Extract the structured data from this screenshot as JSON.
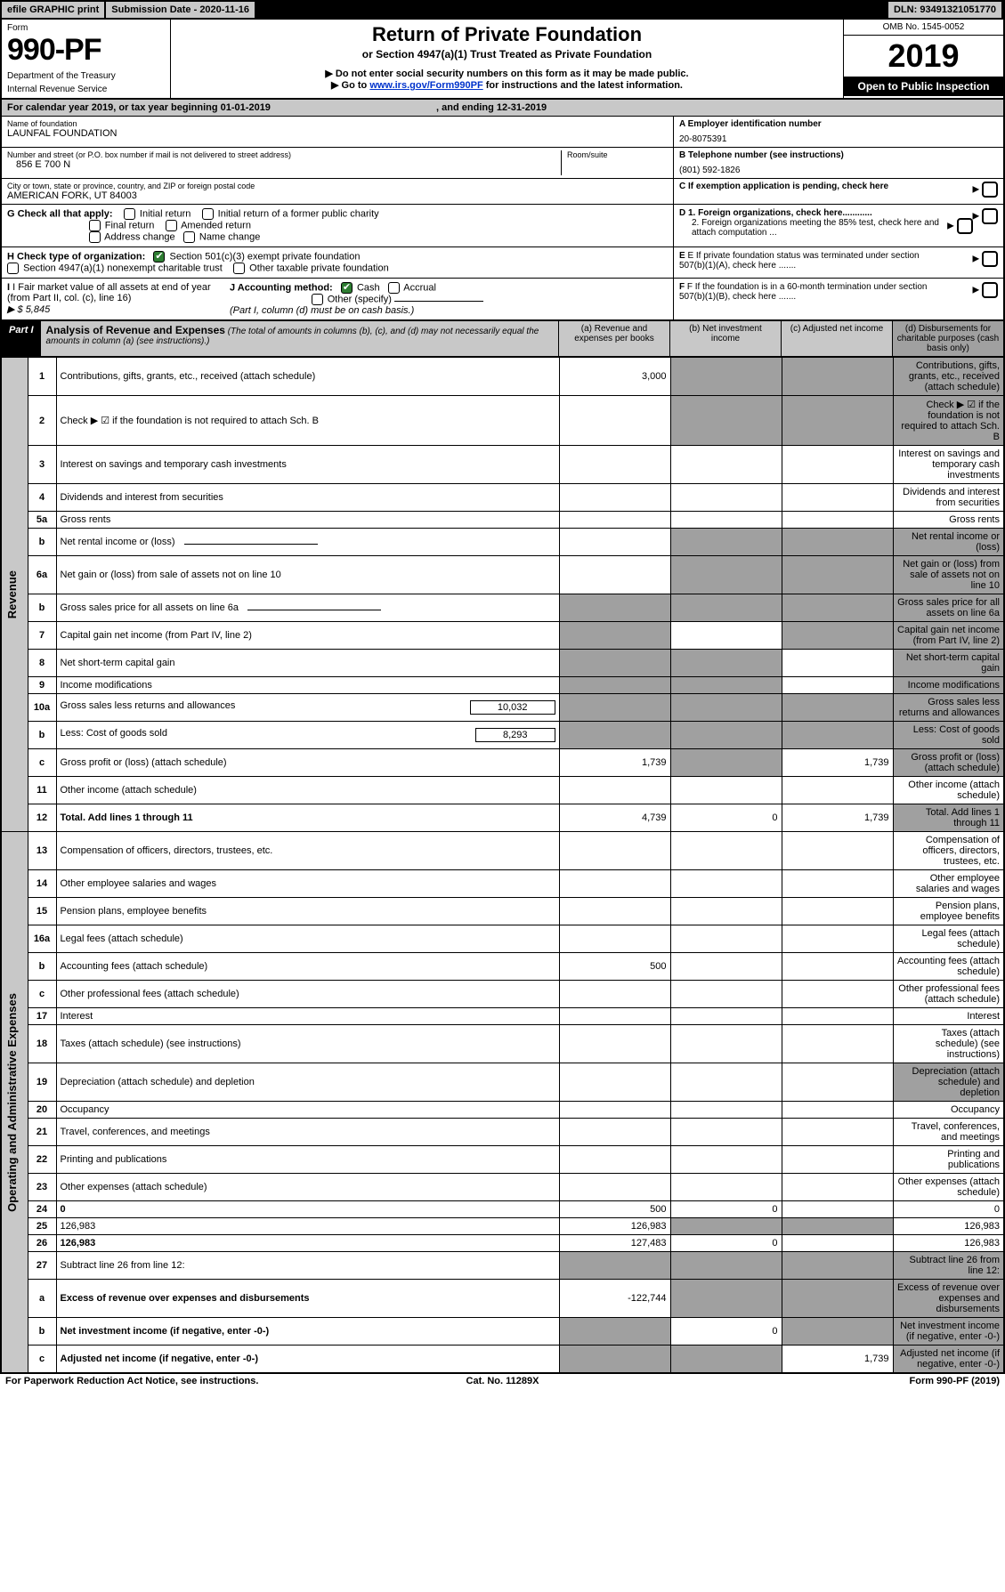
{
  "topbar": {
    "efile": "efile GRAPHIC print",
    "subdate_label": "Submission Date - 2020-11-16",
    "dln": "DLN: 93491321051770"
  },
  "header": {
    "form_label": "Form",
    "form_number": "990-PF",
    "dept": "Department of the Treasury",
    "irs": "Internal Revenue Service",
    "title": "Return of Private Foundation",
    "subtitle": "or Section 4947(a)(1) Trust Treated as Private Foundation",
    "note1": "▶ Do not enter social security numbers on this form as it may be made public.",
    "note2_pre": "▶ Go to ",
    "note2_link": "www.irs.gov/Form990PF",
    "note2_post": " for instructions and the latest information.",
    "omb": "OMB No. 1545-0052",
    "year": "2019",
    "open": "Open to Public Inspection"
  },
  "calyear": {
    "text_pre": "For calendar year 2019, or tax year beginning ",
    "begin": "01-01-2019",
    "text_mid": " , and ending ",
    "end": "12-31-2019"
  },
  "info": {
    "name_label": "Name of foundation",
    "name": "LAUNFAL FOUNDATION",
    "ein_label": "A Employer identification number",
    "ein": "20-8075391",
    "addr_label": "Number and street (or P.O. box number if mail is not delivered to street address)",
    "addr": "856 E 700 N",
    "room_label": "Room/suite",
    "phone_label": "B Telephone number (see instructions)",
    "phone": "(801) 592-1826",
    "city_label": "City or town, state or province, country, and ZIP or foreign postal code",
    "city": "AMERICAN FORK, UT  84003",
    "c_label": "C If exemption application is pending, check here"
  },
  "checks": {
    "g_label": "G Check all that apply:",
    "g1": "Initial return",
    "g2": "Initial return of a former public charity",
    "g3": "Final return",
    "g4": "Amended return",
    "g5": "Address change",
    "g6": "Name change",
    "d1": "D 1. Foreign organizations, check here............",
    "d2": "2. Foreign organizations meeting the 85% test, check here and attach computation ...",
    "h_label": "H Check type of organization:",
    "h1": "Section 501(c)(3) exempt private foundation",
    "h2": "Section 4947(a)(1) nonexempt charitable trust",
    "h3": "Other taxable private foundation",
    "e_label": "E If private foundation status was terminated under section 507(b)(1)(A), check here .......",
    "i_label": "I Fair market value of all assets at end of year (from Part II, col. (c), line 16)",
    "i_val": "▶ $  5,845",
    "j_label": "J Accounting method:",
    "j1": "Cash",
    "j2": "Accrual",
    "j3": "Other (specify)",
    "j_note": "(Part I, column (d) must be on cash basis.)",
    "f_label": "F If the foundation is in a 60-month termination under section 507(b)(1)(B), check here ......."
  },
  "part1": {
    "label": "Part I",
    "title": "Analysis of Revenue and Expenses",
    "note": " (The total of amounts in columns (b), (c), and (d) may not necessarily equal the amounts in column (a) (see instructions).)",
    "col_a": "(a)   Revenue and expenses per books",
    "col_b": "(b)  Net investment income",
    "col_c": "(c)  Adjusted net income",
    "col_d": "(d)  Disbursements for charitable purposes (cash basis only)"
  },
  "sections": {
    "revenue": "Revenue",
    "expenses": "Operating and Administrative Expenses"
  },
  "rows": [
    {
      "n": "1",
      "d": "Contributions, gifts, grants, etc., received (attach schedule)",
      "a": "3,000",
      "grey_bcd": true
    },
    {
      "n": "2",
      "d": "Check ▶ ☑ if the foundation is not required to attach Sch. B",
      "grey_bcd": true,
      "dots": true
    },
    {
      "n": "3",
      "d": "Interest on savings and temporary cash investments"
    },
    {
      "n": "4",
      "d": "Dividends and interest from securities",
      "dots": true
    },
    {
      "n": "5a",
      "d": "Gross rents",
      "dots": true
    },
    {
      "n": "b",
      "d": "Net rental income or (loss)",
      "grey_only_a": false,
      "grey_bcd": true,
      "inline": true
    },
    {
      "n": "6a",
      "d": "Net gain or (loss) from sale of assets not on line 10",
      "grey_bcd": true
    },
    {
      "n": "b",
      "d": "Gross sales price for all assets on line 6a",
      "grey_abcd": true,
      "inline": true
    },
    {
      "n": "7",
      "d": "Capital gain net income (from Part IV, line 2)",
      "dots": true,
      "grey_a": true,
      "grey_cd": true
    },
    {
      "n": "8",
      "d": "Net short-term capital gain",
      "dots": true,
      "grey_a": true,
      "grey_bd": true
    },
    {
      "n": "9",
      "d": "Income modifications",
      "dots": true,
      "grey_a": true,
      "grey_bd": true
    },
    {
      "n": "10a",
      "d": "Gross sales less returns and allowances",
      "inline_val": "10,032",
      "grey_abcd": true
    },
    {
      "n": "b",
      "d": "Less: Cost of goods sold",
      "dots": true,
      "inline_val": "8,293",
      "grey_abcd": true
    },
    {
      "n": "c",
      "d": "Gross profit or (loss) (attach schedule)",
      "dots": true,
      "a": "1,739",
      "c": "1,739",
      "grey_b": true,
      "grey_d": true
    },
    {
      "n": "11",
      "d": "Other income (attach schedule)",
      "dots": true
    },
    {
      "n": "12",
      "d": "Total. Add lines 1 through 11",
      "dots": true,
      "bold": true,
      "a": "4,739",
      "b": "0",
      "c": "1,739",
      "grey_d": true
    }
  ],
  "exp_rows": [
    {
      "n": "13",
      "d": "Compensation of officers, directors, trustees, etc."
    },
    {
      "n": "14",
      "d": "Other employee salaries and wages",
      "dots": true
    },
    {
      "n": "15",
      "d": "Pension plans, employee benefits",
      "dots": true
    },
    {
      "n": "16a",
      "d": "Legal fees (attach schedule)",
      "dots": true
    },
    {
      "n": "b",
      "d": "Accounting fees (attach schedule)",
      "dots": true,
      "a": "500"
    },
    {
      "n": "c",
      "d": "Other professional fees (attach schedule)",
      "dots": true
    },
    {
      "n": "17",
      "d": "Interest",
      "dots": true
    },
    {
      "n": "18",
      "d": "Taxes (attach schedule) (see instructions)",
      "dots": true
    },
    {
      "n": "19",
      "d": "Depreciation (attach schedule) and depletion",
      "dots": true,
      "grey_d": true
    },
    {
      "n": "20",
      "d": "Occupancy",
      "dots": true
    },
    {
      "n": "21",
      "d": "Travel, conferences, and meetings",
      "dots": true
    },
    {
      "n": "22",
      "d": "Printing and publications",
      "dots": true
    },
    {
      "n": "23",
      "d": "Other expenses (attach schedule)",
      "dots": true
    },
    {
      "n": "24",
      "d": "0",
      "dots": true,
      "bold": true,
      "a": "500",
      "b": "0"
    },
    {
      "n": "25",
      "d": "126,983",
      "dots": true,
      "a": "126,983",
      "grey_bc": true
    },
    {
      "n": "26",
      "d": "126,983",
      "bold": true,
      "a": "127,483",
      "b": "0"
    },
    {
      "n": "27",
      "d": "Subtract line 26 from line 12:",
      "grey_abcd": true
    },
    {
      "n": "a",
      "d": "Excess of revenue over expenses and disbursements",
      "bold": true,
      "a": "-122,744",
      "grey_bcd": true
    },
    {
      "n": "b",
      "d": "Net investment income (if negative, enter -0-)",
      "bold": true,
      "b": "0",
      "grey_a": true,
      "grey_cd": true
    },
    {
      "n": "c",
      "d": "Adjusted net income (if negative, enter -0-)",
      "bold": true,
      "dots": true,
      "c": "1,739",
      "grey_a": true,
      "grey_b": true,
      "grey_d": true
    }
  ],
  "footer": {
    "left": "For Paperwork Reduction Act Notice, see instructions.",
    "mid": "Cat. No. 11289X",
    "right": "Form 990-PF (2019)"
  }
}
